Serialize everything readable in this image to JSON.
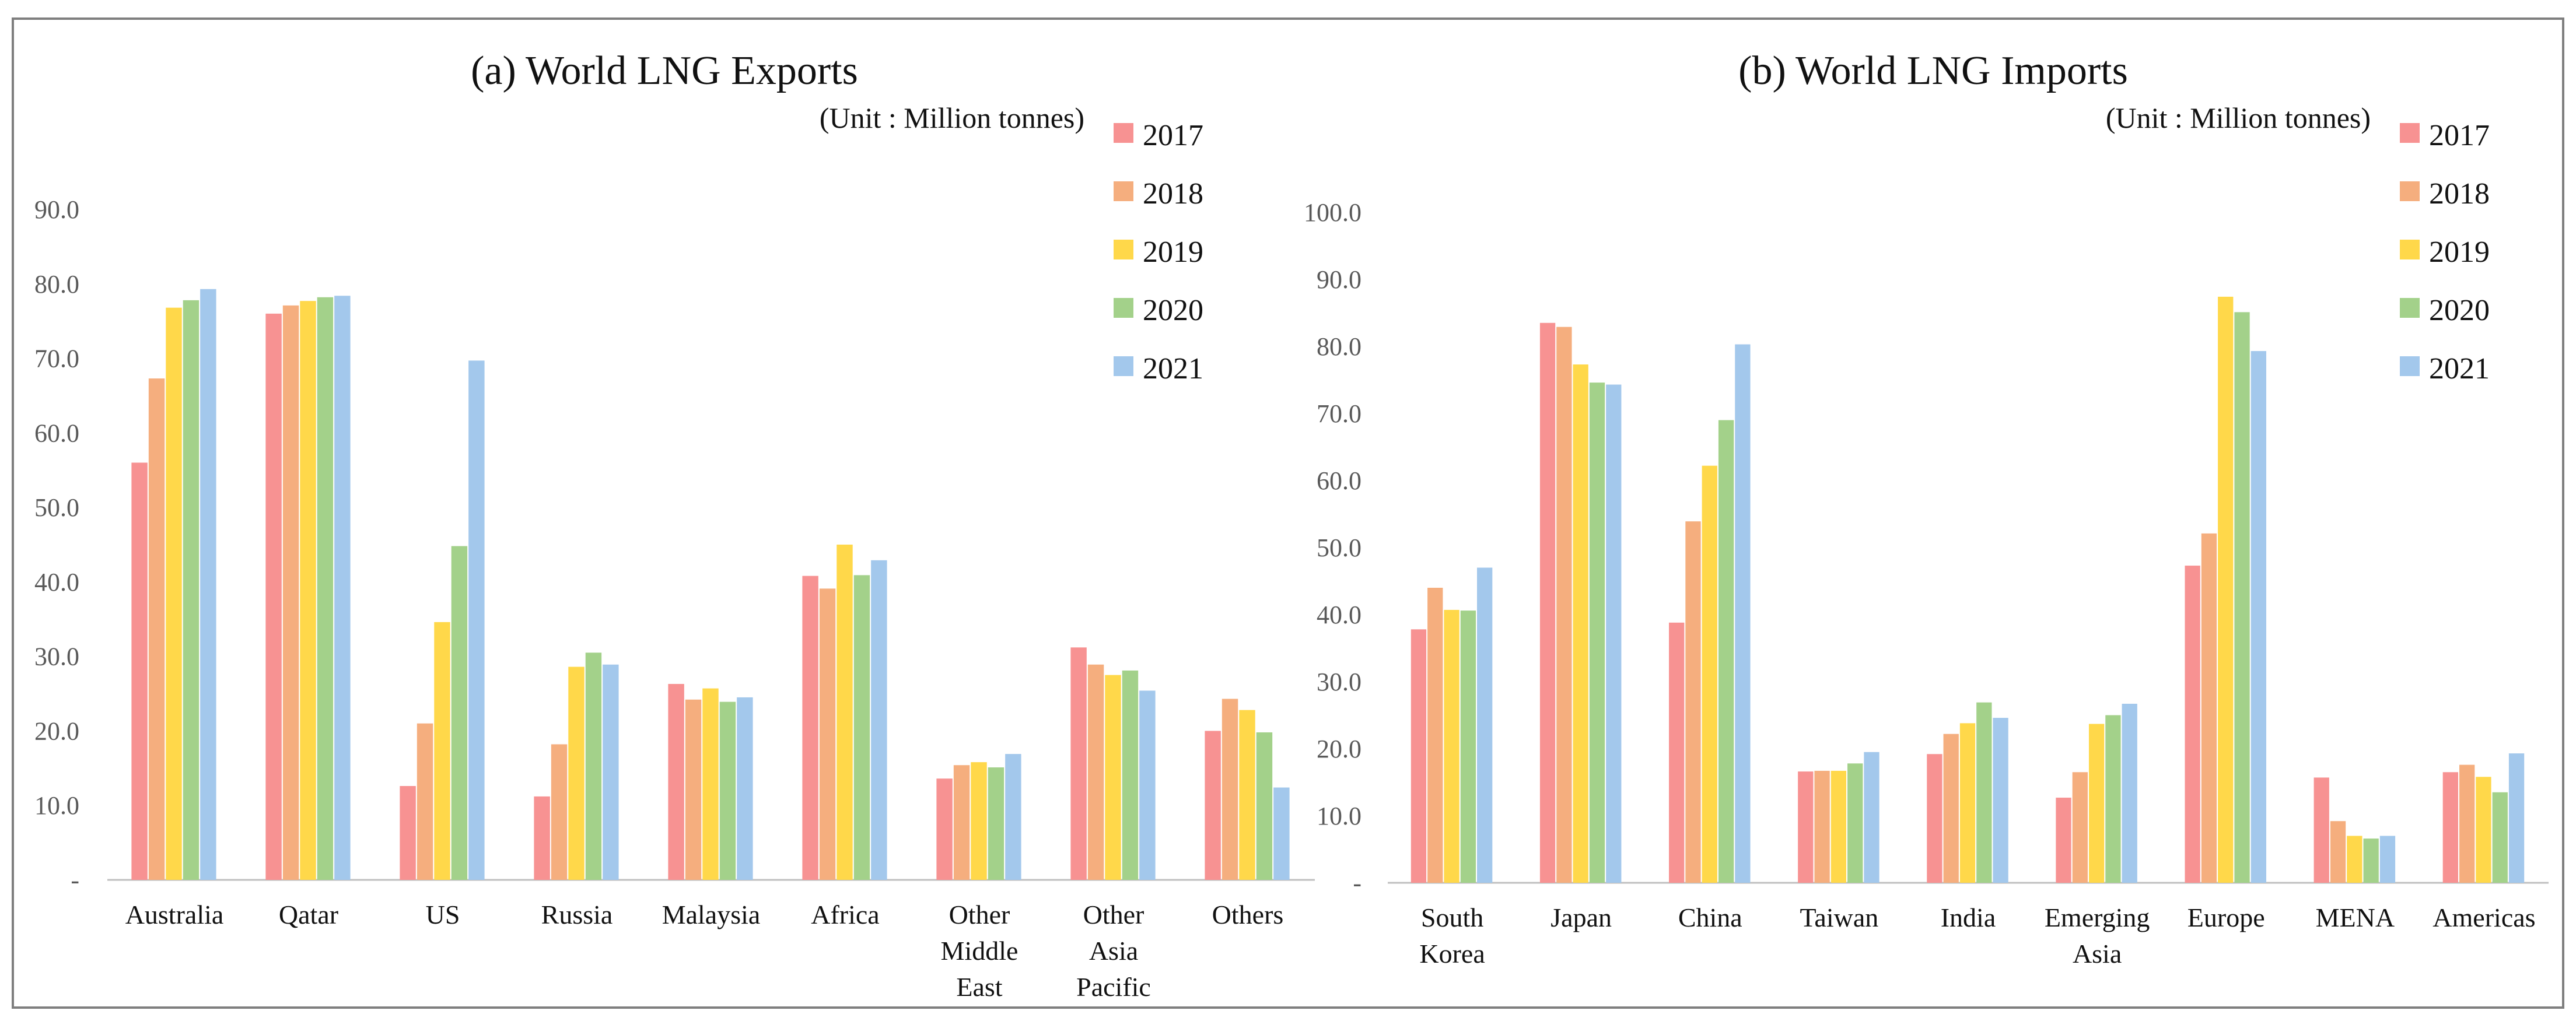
{
  "chart_data": [
    {
      "type": "bar",
      "title": "(a) World LNG Exports",
      "unit": "(Unit : Million tonnes)",
      "categories": [
        "Australia",
        "Qatar",
        "US",
        "Russia",
        "Malaysia",
        "Africa",
        "Other Middle East",
        "Other Asia Pacific",
        "Others"
      ],
      "ylim": [
        0,
        90
      ],
      "yticks": [
        "-",
        "10.0",
        "20.0",
        "30.0",
        "40.0",
        "50.0",
        "60.0",
        "70.0",
        "80.0",
        "90.0"
      ],
      "series": [
        {
          "name": "2017",
          "color": "#f79292",
          "values": [
            56.0,
            76.0,
            12.6,
            11.2,
            26.3,
            40.8,
            13.6,
            31.2,
            20.0
          ]
        },
        {
          "name": "2018",
          "color": "#f5ae7e",
          "values": [
            67.3,
            77.1,
            21.0,
            18.2,
            24.2,
            39.1,
            15.4,
            28.9,
            24.3
          ]
        },
        {
          "name": "2019",
          "color": "#ffd84a",
          "values": [
            76.8,
            77.7,
            34.6,
            28.6,
            25.7,
            45.0,
            15.8,
            27.5,
            22.8
          ]
        },
        {
          "name": "2020",
          "color": "#a3d18a",
          "values": [
            77.8,
            78.2,
            44.8,
            30.5,
            23.9,
            40.9,
            15.1,
            28.1,
            19.8
          ]
        },
        {
          "name": "2021",
          "color": "#a3c8ec",
          "values": [
            79.3,
            78.4,
            69.7,
            28.9,
            24.5,
            42.9,
            16.9,
            25.4,
            12.4
          ]
        }
      ],
      "legend": "top-right"
    },
    {
      "type": "bar",
      "title": "(b) World LNG Imports",
      "unit": "(Unit : Million tonnes)",
      "categories": [
        "South Korea",
        "Japan",
        "China",
        "Taiwan",
        "India",
        "Emerging Asia",
        "Europe",
        "MENA",
        "Americas"
      ],
      "ylim": [
        0,
        100
      ],
      "yticks": [
        "-",
        "10.0",
        "20.0",
        "30.0",
        "40.0",
        "50.0",
        "60.0",
        "70.0",
        "80.0",
        "90.0",
        "100.0"
      ],
      "series": [
        {
          "name": "2017",
          "color": "#f79292",
          "values": [
            37.8,
            83.5,
            38.8,
            16.6,
            19.2,
            12.7,
            47.3,
            15.7,
            16.5
          ]
        },
        {
          "name": "2018",
          "color": "#f5ae7e",
          "values": [
            44.0,
            82.9,
            53.9,
            16.7,
            22.2,
            16.5,
            52.1,
            9.2,
            17.6
          ]
        },
        {
          "name": "2019",
          "color": "#ffd84a",
          "values": [
            40.7,
            77.3,
            62.2,
            16.7,
            23.8,
            23.7,
            87.4,
            7.0,
            15.8
          ]
        },
        {
          "name": "2020",
          "color": "#a3d18a",
          "values": [
            40.6,
            74.6,
            69.0,
            17.8,
            26.9,
            25.0,
            85.1,
            6.6,
            13.5
          ]
        },
        {
          "name": "2021",
          "color": "#a3c8ec",
          "values": [
            47.0,
            74.3,
            80.3,
            19.5,
            24.6,
            26.7,
            79.3,
            7.0,
            19.3
          ]
        }
      ],
      "legend": "top-right"
    }
  ]
}
